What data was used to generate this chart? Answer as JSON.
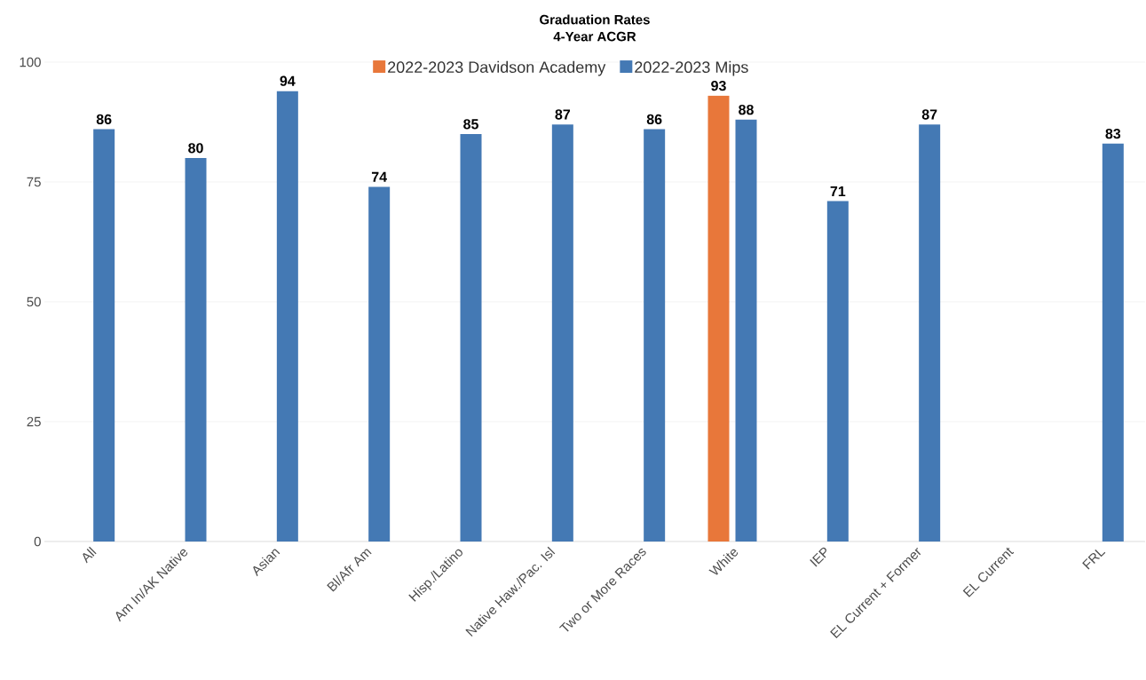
{
  "chart_data": {
    "type": "bar",
    "title": "Graduation Rates",
    "subtitle": "4-Year ACGR",
    "categories": [
      "All",
      "Am In/AK Native",
      "Asian",
      "Bl/Afr Am",
      "Hisp./Latino",
      "Native Haw./Pac. Isl",
      "Two or More Races",
      "White",
      "IEP",
      "EL Current + Former",
      "EL Current",
      "FRL"
    ],
    "series": [
      {
        "name": "2022-2023 Davidson Academy",
        "color": "#e8773a",
        "values": [
          null,
          null,
          null,
          null,
          null,
          null,
          null,
          93,
          null,
          null,
          null,
          null
        ]
      },
      {
        "name": "2022-2023 Mips",
        "color": "#4479b4",
        "values": [
          86,
          80,
          94,
          74,
          85,
          87,
          86,
          88,
          71,
          87,
          null,
          83
        ]
      }
    ],
    "ylim": [
      0,
      100
    ],
    "yticks": [
      0,
      25,
      50,
      75,
      100
    ],
    "grid": "y",
    "legend": "top",
    "data_labels": true
  }
}
